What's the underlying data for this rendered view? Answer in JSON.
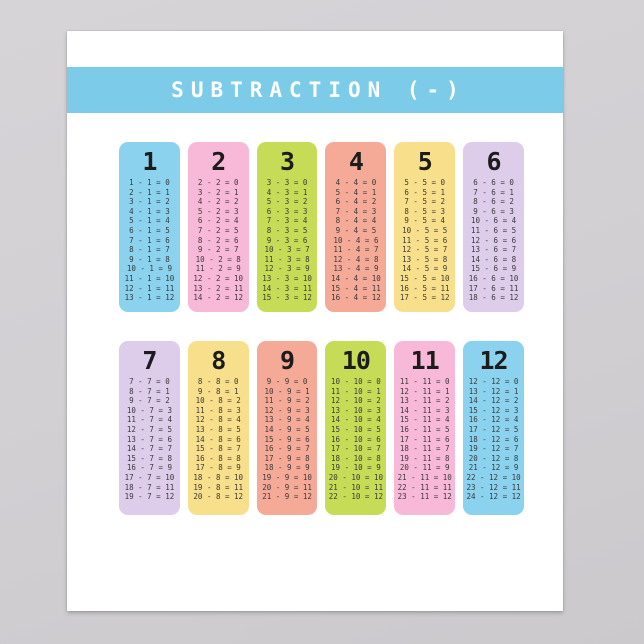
{
  "page": {
    "background_gray": "#d1cfd2"
  },
  "poster": {
    "background": "#ffffff"
  },
  "banner": {
    "title": "SUBTRACTION (-)",
    "background": "#7ccce9",
    "text_color": "#ffffff"
  },
  "tables": [
    {
      "number": "1",
      "color": "#8ad2ee",
      "rows": [
        "1 - 1 = 0",
        "2 - 1 = 1",
        "3 - 1 = 2",
        "4 - 1 = 3",
        "5 - 1 = 4",
        "6 - 1 = 5",
        "7 - 1 = 6",
        "8 - 1 = 7",
        "9 - 1 = 8",
        "10 - 1 = 9",
        "11 - 1 = 10",
        "12 - 1 = 11",
        "13 - 1 = 12"
      ]
    },
    {
      "number": "2",
      "color": "#f8b9d8",
      "rows": [
        "2 - 2 = 0",
        "3 - 2 = 1",
        "4 - 2 = 2",
        "5 - 2 = 3",
        "6 - 2 = 4",
        "7 - 2 = 5",
        "8 - 2 = 6",
        "9 - 2 = 7",
        "10 - 2 = 8",
        "11 - 2 = 9",
        "12 - 2 = 10",
        "13 - 2 = 11",
        "14 - 2 = 12"
      ]
    },
    {
      "number": "3",
      "color": "#c6dc57",
      "rows": [
        "3 - 3 = 0",
        "4 - 3 = 1",
        "5 - 3 = 2",
        "6 - 3 = 3",
        "7 - 3 = 4",
        "8 - 3 = 5",
        "9 - 3 = 6",
        "10 - 3 = 7",
        "11 - 3 = 8",
        "12 - 3 = 9",
        "13 - 3 = 10",
        "14 - 3 = 11",
        "15 - 3 = 12"
      ]
    },
    {
      "number": "4",
      "color": "#f5aa98",
      "rows": [
        "4 - 4 = 0",
        "5 - 4 = 1",
        "6 - 4 = 2",
        "7 - 4 = 3",
        "8 - 4 = 4",
        "9 - 4 = 5",
        "10 - 4 = 6",
        "11 - 4 = 7",
        "12 - 4 = 8",
        "13 - 4 = 9",
        "14 - 4 = 10",
        "15 - 4 = 11",
        "16 - 4 = 12"
      ]
    },
    {
      "number": "5",
      "color": "#f8df8b",
      "rows": [
        "5 - 5 = 0",
        "6 - 5 = 1",
        "7 - 5 = 2",
        "8 - 5 = 3",
        "9 - 5 = 4",
        "10 - 5 = 5",
        "11 - 5 = 6",
        "12 - 5 = 7",
        "13 - 5 = 8",
        "14 - 5 = 9",
        "15 - 5 = 10",
        "16 - 5 = 11",
        "17 - 5 = 12"
      ]
    },
    {
      "number": "6",
      "color": "#ddccea",
      "rows": [
        "6 - 6 = 0",
        "7 - 6 = 1",
        "8 - 6 = 2",
        "9 - 6 = 3",
        "10 - 6 = 4",
        "11 - 6 = 5",
        "12 - 6 = 6",
        "13 - 6 = 7",
        "14 - 6 = 8",
        "15 - 6 = 9",
        "16 - 6 = 10",
        "17 - 6 = 11",
        "18 - 6 = 12"
      ]
    },
    {
      "number": "7",
      "color": "#ddccea",
      "rows": [
        "7 - 7 = 0",
        "8 - 7 = 1",
        "9 - 7 = 2",
        "10 - 7 = 3",
        "11 - 7 = 4",
        "12 - 7 = 5",
        "13 - 7 = 6",
        "14 - 7 = 7",
        "15 - 7 = 8",
        "16 - 7 = 9",
        "17 - 7 = 10",
        "18 - 7 = 11",
        "19 - 7 = 12"
      ]
    },
    {
      "number": "8",
      "color": "#f8df8b",
      "rows": [
        "8 - 8 = 0",
        "9 - 8 = 1",
        "10 - 8 = 2",
        "11 - 8 = 3",
        "12 - 8 = 4",
        "13 - 8 = 5",
        "14 - 8 = 6",
        "15 - 8 = 7",
        "16 - 8 = 8",
        "17 - 8 = 9",
        "18 - 8 = 10",
        "19 - 8 = 11",
        "20 - 8 = 12"
      ]
    },
    {
      "number": "9",
      "color": "#f5aa98",
      "rows": [
        "9 - 9 = 0",
        "10 - 9 = 1",
        "11 - 9 = 2",
        "12 - 9 = 3",
        "13 - 9 = 4",
        "14 - 9 = 5",
        "15 - 9 = 6",
        "16 - 9 = 7",
        "17 - 9 = 8",
        "18 - 9 = 9",
        "19 - 9 = 10",
        "20 - 9 = 11",
        "21 - 9 = 12"
      ]
    },
    {
      "number": "10",
      "color": "#c6dc57",
      "rows": [
        "10 - 10 = 0",
        "11 - 10 = 1",
        "12 - 10 = 2",
        "13 - 10 = 3",
        "14 - 10 = 4",
        "15 - 10 = 5",
        "16 - 10 = 6",
        "17 - 10 = 7",
        "18 - 10 = 8",
        "19 - 10 = 9",
        "20 - 10 = 10",
        "21 - 10 = 11",
        "22 - 10 = 12"
      ]
    },
    {
      "number": "11",
      "color": "#f8b9d8",
      "rows": [
        "11 - 11 = 0",
        "12 - 11 = 1",
        "13 - 11 = 2",
        "14 - 11 = 3",
        "15 - 11 = 4",
        "16 - 11 = 5",
        "17 - 11 = 6",
        "18 - 11 = 7",
        "19 - 11 = 8",
        "20 - 11 = 9",
        "21 - 11 = 10",
        "22 - 11 = 11",
        "23 - 11 = 12"
      ]
    },
    {
      "number": "12",
      "color": "#8ad2ee",
      "rows": [
        "12 - 12 = 0",
        "13 - 12 = 1",
        "14 - 12 = 2",
        "15 - 12 = 3",
        "16 - 12 = 4",
        "17 - 12 = 5",
        "18 - 12 = 6",
        "19 - 12 = 7",
        "20 - 12 = 8",
        "21 - 12 = 9",
        "22 - 12 = 10",
        "23 - 12 = 11",
        "24 - 12 = 12"
      ]
    }
  ]
}
